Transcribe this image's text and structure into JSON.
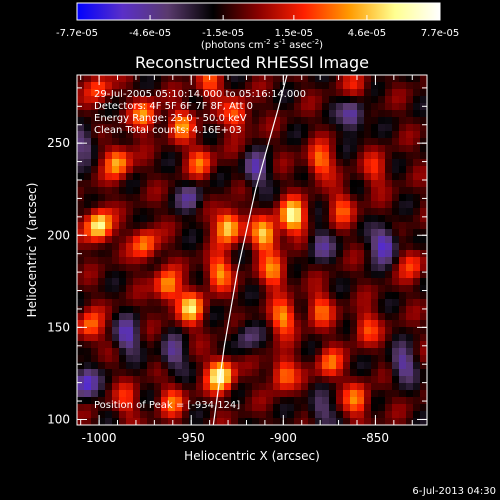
{
  "chart_data": {
    "type": "heatmap",
    "title": "Reconstructed RHESSI Image",
    "colorbar": {
      "ticks": [
        "-7.7e-05",
        "-4.6e-05",
        "-1.5e-05",
        "1.5e-05",
        "4.6e-05",
        "7.7e-05"
      ],
      "range": [
        -7.7e-05,
        7.7e-05
      ],
      "unit_label_parts": [
        "(photons cm",
        "-2",
        " s",
        "-1",
        " asec",
        "-2",
        ")"
      ]
    },
    "xlabel": "Heliocentric X (arcsec)",
    "ylabel": "Heliocentric Y (arcsec)",
    "xlim": [
      -1012,
      -822
    ],
    "ylim": [
      97,
      287
    ],
    "xticks": [
      "-1000",
      "-950",
      "-900",
      "-850"
    ],
    "yticks": [
      "100",
      "150",
      "200",
      "250"
    ],
    "annotations": [
      "29-Jul-2005 05:10:14.000 to 05:16:14.000",
      "Detectors: 4F 5F 6F 7F 8F, Att 0",
      "Energy Range: 25.0 - 50.0 keV",
      "Clean    Total counts: 4.16E+03"
    ],
    "peak_label": "Position of Peak = [-934,124]",
    "peak": [
      -934,
      124
    ],
    "timestamp": "6-Jul-2013 04:30",
    "colormap": [
      "#0000ff",
      "#5a2fc8",
      "#5a3a6e",
      "#000000",
      "#8a0000",
      "#ff2000",
      "#ff9a00",
      "#ffff90",
      "#ffffff"
    ],
    "blobs": [
      {
        "x": -934,
        "y": 124,
        "v": 1.0
      },
      {
        "x": -1000,
        "y": 205,
        "v": 0.95
      },
      {
        "x": -990,
        "y": 240,
        "v": 0.7
      },
      {
        "x": -975,
        "y": 195,
        "v": 0.6
      },
      {
        "x": -963,
        "y": 172,
        "v": 0.7
      },
      {
        "x": -950,
        "y": 160,
        "v": 0.75
      },
      {
        "x": -930,
        "y": 205,
        "v": 0.9
      },
      {
        "x": -935,
        "y": 180,
        "v": 0.65
      },
      {
        "x": -910,
        "y": 200,
        "v": 0.8
      },
      {
        "x": -895,
        "y": 210,
        "v": 0.95
      },
      {
        "x": -905,
        "y": 180,
        "v": 0.6
      },
      {
        "x": -900,
        "y": 155,
        "v": 0.65
      },
      {
        "x": -880,
        "y": 160,
        "v": 0.5
      },
      {
        "x": -900,
        "y": 125,
        "v": 0.6
      },
      {
        "x": -875,
        "y": 130,
        "v": 0.5
      },
      {
        "x": -860,
        "y": 110,
        "v": 0.55
      },
      {
        "x": -855,
        "y": 150,
        "v": 0.45
      },
      {
        "x": -960,
        "y": 110,
        "v": 0.45
      },
      {
        "x": -985,
        "y": 110,
        "v": 0.35
      },
      {
        "x": -1005,
        "y": 150,
        "v": 0.55
      },
      {
        "x": -975,
        "y": 265,
        "v": 0.6
      },
      {
        "x": -955,
        "y": 260,
        "v": 0.55
      },
      {
        "x": -945,
        "y": 240,
        "v": 0.5
      },
      {
        "x": -925,
        "y": 265,
        "v": 0.55
      },
      {
        "x": -880,
        "y": 240,
        "v": 0.6
      },
      {
        "x": -868,
        "y": 215,
        "v": 0.45
      },
      {
        "x": -850,
        "y": 235,
        "v": 0.35
      },
      {
        "x": -830,
        "y": 185,
        "v": 0.4
      },
      {
        "x": -1000,
        "y": 280,
        "v": 0.45
      },
      {
        "x": -940,
        "y": 282,
        "v": 0.45
      },
      {
        "x": -860,
        "y": 280,
        "v": 0.3
      },
      {
        "x": -845,
        "y": 195,
        "v": -0.7
      },
      {
        "x": -862,
        "y": 265,
        "v": -0.6
      },
      {
        "x": -835,
        "y": 130,
        "v": -0.5
      },
      {
        "x": -1008,
        "y": 120,
        "v": -0.6
      },
      {
        "x": -985,
        "y": 145,
        "v": -0.55
      },
      {
        "x": -960,
        "y": 135,
        "v": -0.45
      },
      {
        "x": -915,
        "y": 235,
        "v": -0.5
      },
      {
        "x": -950,
        "y": 220,
        "v": -0.4
      },
      {
        "x": -880,
        "y": 195,
        "v": -0.4
      },
      {
        "x": -920,
        "y": 145,
        "v": -0.35
      },
      {
        "x": -1008,
        "y": 250,
        "v": -0.45
      },
      {
        "x": -880,
        "y": 105,
        "v": -0.4
      }
    ],
    "limb_curve": [
      [
        -938,
        97
      ],
      [
        -932,
        140
      ],
      [
        -925,
        180
      ],
      [
        -915,
        225
      ],
      [
        -903,
        268
      ],
      [
        -898,
        287
      ]
    ]
  }
}
